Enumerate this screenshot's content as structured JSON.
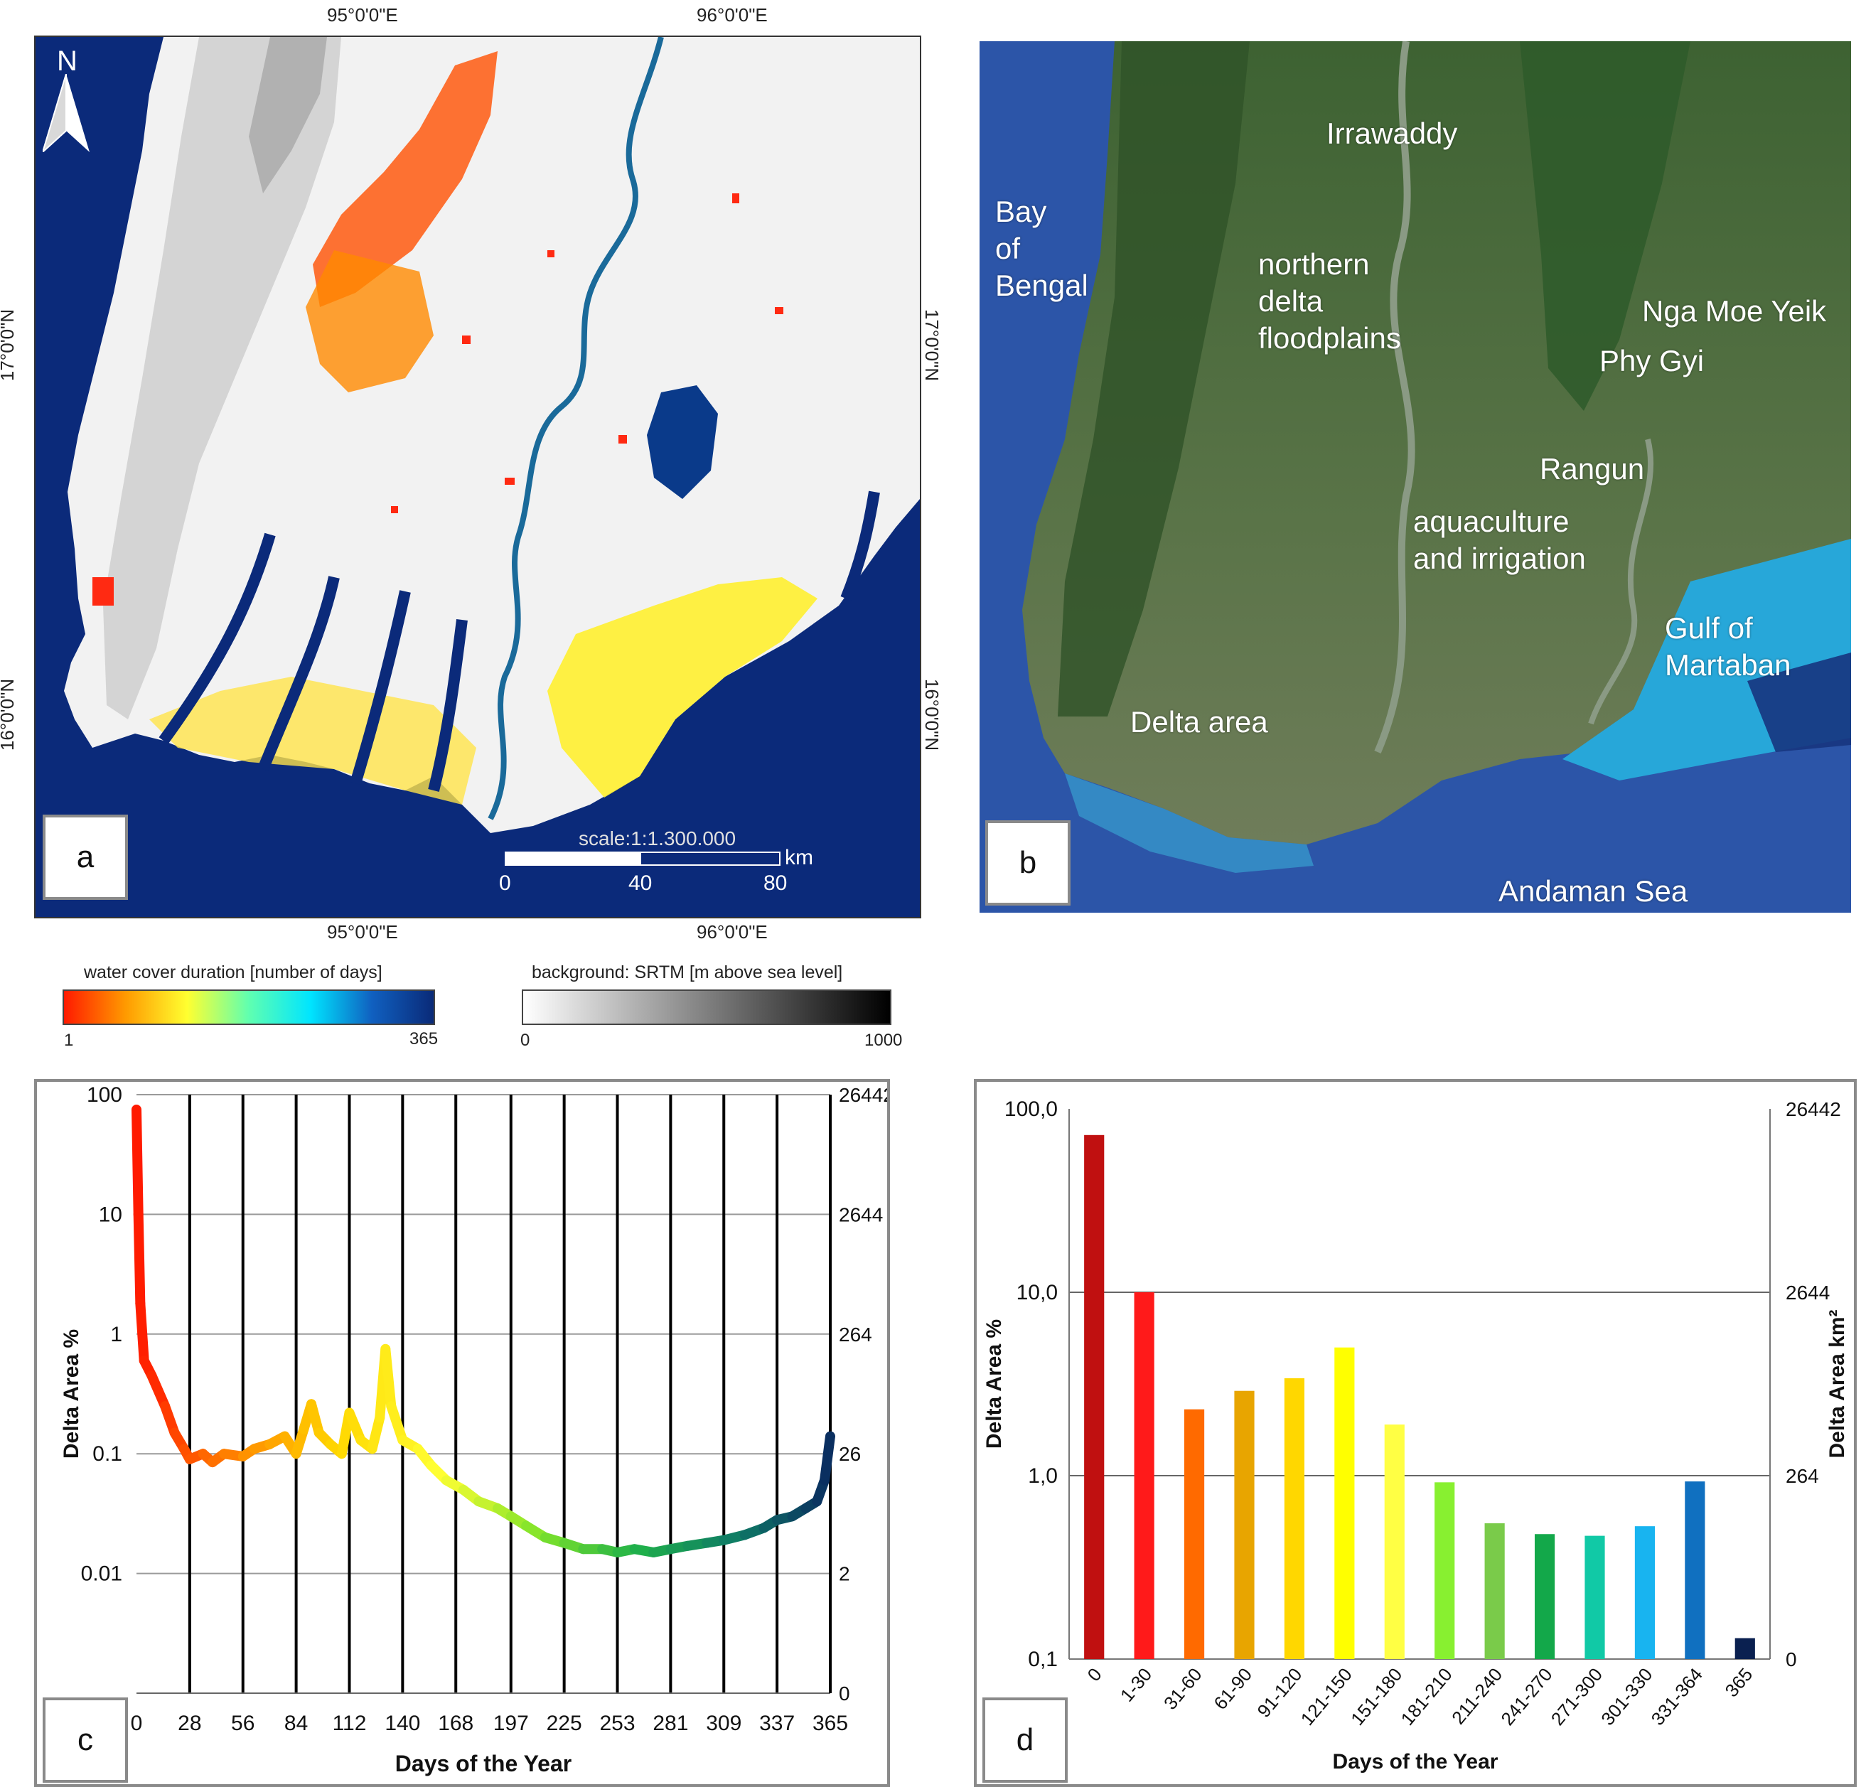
{
  "panel_a": {
    "label": "a",
    "north": "N",
    "lon_labels": [
      "95°0'0\"E",
      "96°0'0\"E"
    ],
    "lat_labels": [
      "17°0'0\"N",
      "16°0'0\"N"
    ],
    "scale_text": "scale:1:1.300.000",
    "scale_unit": "km",
    "scale_ticks": [
      "0",
      "40",
      "80"
    ],
    "colors": {
      "sea": "#0b2a7a",
      "land": "#f2f2f2",
      "short": "#ff2a12",
      "mid": "#ffe34a",
      "long": "#0a3a8a"
    }
  },
  "panel_b": {
    "label": "b",
    "place_labels": {
      "bay": "Bay\nof\nBengal",
      "irrawaddy": "Irrawaddy",
      "northern": "northern\ndelta\nfloodplains",
      "nga": "Nga Moe Yeik",
      "phy": "Phy Gyi",
      "rangun": "Rangun",
      "aqua": "aquaculture\nand irrigation",
      "gulf": "Gulf of\nMartaban",
      "delta": "Delta area",
      "andaman": "Andaman Sea"
    },
    "colors": {
      "sea": "#2c55a8",
      "land": "#4f6e3d",
      "turquoise": "#27a7d9"
    }
  },
  "legend": {
    "water": {
      "title": "water cover duration [number of days]",
      "min": "1",
      "max": "365",
      "stops": [
        "#ff1a00",
        "#ff9a00",
        "#ffff30",
        "#60ffb0",
        "#00e5ff",
        "#1060c0",
        "#0a2a78"
      ]
    },
    "srtm": {
      "title": "background: SRTM [m above sea level]",
      "min": "0",
      "max": "1000"
    }
  },
  "panel_c": {
    "label": "c",
    "chart_data": {
      "type": "line",
      "xlabel": "Days of the Year",
      "ylabel": "Delta Area %",
      "ylabel_right": "Delta Area km²",
      "yscale": "log",
      "ylim": [
        0.001,
        100
      ],
      "xlim": [
        0,
        365
      ],
      "x_ticks": [
        "0",
        "28",
        "56",
        "84",
        "112",
        "140",
        "168",
        "197",
        "225",
        "253",
        "281",
        "309",
        "337",
        "365"
      ],
      "y_ticks_left": [
        "100",
        "10",
        "1",
        "0.1",
        "0.01"
      ],
      "y_ticks_right": [
        "26442",
        "2644",
        "264",
        "26",
        "2",
        "0"
      ],
      "points": [
        [
          0,
          75
        ],
        [
          1,
          10
        ],
        [
          2,
          1.8
        ],
        [
          4,
          0.6
        ],
        [
          8,
          0.45
        ],
        [
          15,
          0.25
        ],
        [
          20,
          0.15
        ],
        [
          25,
          0.11
        ],
        [
          28,
          0.09
        ],
        [
          35,
          0.1
        ],
        [
          40,
          0.085
        ],
        [
          46,
          0.1
        ],
        [
          56,
          0.095
        ],
        [
          62,
          0.11
        ],
        [
          70,
          0.12
        ],
        [
          78,
          0.14
        ],
        [
          84,
          0.1
        ],
        [
          88,
          0.16
        ],
        [
          92,
          0.26
        ],
        [
          96,
          0.15
        ],
        [
          102,
          0.12
        ],
        [
          108,
          0.1
        ],
        [
          112,
          0.22
        ],
        [
          118,
          0.13
        ],
        [
          124,
          0.11
        ],
        [
          128,
          0.2
        ],
        [
          131,
          0.75
        ],
        [
          134,
          0.25
        ],
        [
          140,
          0.13
        ],
        [
          148,
          0.11
        ],
        [
          155,
          0.08
        ],
        [
          163,
          0.06
        ],
        [
          172,
          0.05
        ],
        [
          180,
          0.04
        ],
        [
          190,
          0.035
        ],
        [
          197,
          0.03
        ],
        [
          205,
          0.025
        ],
        [
          215,
          0.02
        ],
        [
          225,
          0.018
        ],
        [
          235,
          0.016
        ],
        [
          245,
          0.016
        ],
        [
          253,
          0.015
        ],
        [
          262,
          0.016
        ],
        [
          272,
          0.015
        ],
        [
          281,
          0.016
        ],
        [
          290,
          0.017
        ],
        [
          300,
          0.018
        ],
        [
          309,
          0.019
        ],
        [
          320,
          0.021
        ],
        [
          330,
          0.024
        ],
        [
          337,
          0.028
        ],
        [
          345,
          0.03
        ],
        [
          352,
          0.035
        ],
        [
          358,
          0.04
        ],
        [
          362,
          0.06
        ],
        [
          365,
          0.14
        ]
      ],
      "colors": [
        "#ff1a00",
        "#ff8c00",
        "#ffd700",
        "#ffff33",
        "#7fe32a",
        "#1fb04a",
        "#0f7a66",
        "#0a2a60"
      ]
    }
  },
  "panel_d": {
    "label": "d",
    "chart_data": {
      "type": "bar",
      "xlabel": "Days of the Year",
      "ylabel": "Delta Area %",
      "ylabel_right": "Delta Area km²",
      "yscale": "log",
      "ylim": [
        0.1,
        100
      ],
      "y_ticks_left": [
        "100,0",
        "10,0",
        "1,0",
        "0,1"
      ],
      "y_ticks_right": [
        "26442",
        "2644",
        "264",
        "0"
      ],
      "categories": [
        "0",
        "1-30",
        "31-60",
        "61-90",
        "91-120",
        "121-150",
        "151-180",
        "181-210",
        "211-240",
        "241-270",
        "271-300",
        "301-330",
        "331-364",
        "365"
      ],
      "values": [
        72,
        10,
        2.3,
        2.9,
        3.4,
        5.0,
        1.9,
        0.92,
        0.55,
        0.48,
        0.47,
        0.53,
        0.93,
        0.13
      ],
      "colors": [
        "#c01010",
        "#ff1a1a",
        "#ff6a00",
        "#e8a500",
        "#ffd700",
        "#ffff00",
        "#ffff44",
        "#88f030",
        "#7acb4a",
        "#13a84a",
        "#11c9a6",
        "#18b4f0",
        "#1070c0",
        "#0a2050"
      ]
    }
  }
}
